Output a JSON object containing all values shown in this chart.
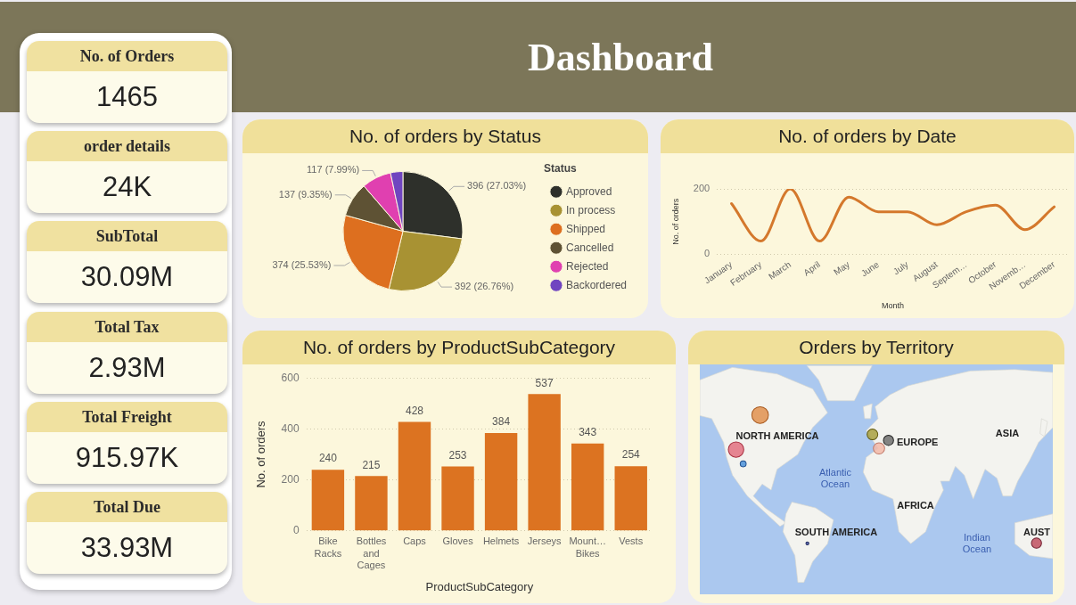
{
  "chart_data": [
    {
      "type": "other",
      "title": "Dashboard"
    },
    {
      "type": "other",
      "title": "No. of Orders",
      "annotations": [
        "1465"
      ]
    },
    {
      "type": "other",
      "title": "order details",
      "annotations": [
        "24K"
      ]
    },
    {
      "type": "other",
      "title": "SubTotal",
      "annotations": [
        "30.09M"
      ]
    },
    {
      "type": "other",
      "title": "Total Tax",
      "annotations": [
        "2.93M"
      ]
    },
    {
      "type": "other",
      "title": "Total Freight",
      "annotations": [
        "915.97K"
      ]
    },
    {
      "type": "other",
      "title": "Total Due",
      "annotations": [
        "33.93M"
      ]
    },
    {
      "type": "pie",
      "title": "No. of orders by Status",
      "categories": [
        "Approved",
        "In process",
        "Shipped",
        "Cancelled",
        "Rejected",
        "Backordered"
      ],
      "values": [
        396,
        392,
        374,
        137,
        117,
        49
      ],
      "colors": [
        "#2e302b",
        "#a89233",
        "#dd6f1f",
        "#5e5234",
        "#e040b0",
        "#7045c0"
      ],
      "value_labels": [
        "396 (27.03%)",
        "392 (26.76%)",
        "374 (25.53%)",
        "137 (9.35%)",
        "117 (7.99%)",
        null
      ],
      "legend": "right",
      "legend_title": "Status"
    },
    {
      "type": "line",
      "title": "No. of orders by Date",
      "xlabel": "Month",
      "ylabel": "No. of orders",
      "categories": [
        "January",
        "February",
        "March",
        "April",
        "May",
        "June",
        "July",
        "August",
        "Septem…",
        "October",
        "Novemb…",
        "December"
      ],
      "values": [
        155,
        40,
        200,
        40,
        175,
        130,
        130,
        90,
        130,
        150,
        75,
        145
      ],
      "color": "#d4782c",
      "ylim": [
        0,
        200
      ],
      "yticks": [
        0,
        200
      ],
      "grid": "y"
    },
    {
      "type": "bar",
      "title": "No. of orders by ProductSubCategory",
      "xlabel": "ProductSubCategory",
      "ylabel": "No. of orders",
      "categories": [
        "Bike Racks",
        "Bottles and Cages",
        "Caps",
        "Gloves",
        "Helmets",
        "Jerseys",
        "Mount… Bikes",
        "Vests"
      ],
      "values": [
        240,
        215,
        428,
        253,
        384,
        537,
        343,
        254
      ],
      "color": "#dc7321",
      "ylim": [
        0,
        600
      ],
      "yticks": [
        0,
        200,
        400,
        600
      ],
      "grid": "y",
      "data_labels": true
    },
    {
      "type": "other",
      "title": "Orders by Territory",
      "annotations": [
        "NORTH AMERICA",
        "EUROPE",
        "ASIA",
        "AFRICA",
        "SOUTH AMERICA",
        "Atlantic Ocean",
        "Indian Ocean",
        "AUST"
      ]
    }
  ]
}
